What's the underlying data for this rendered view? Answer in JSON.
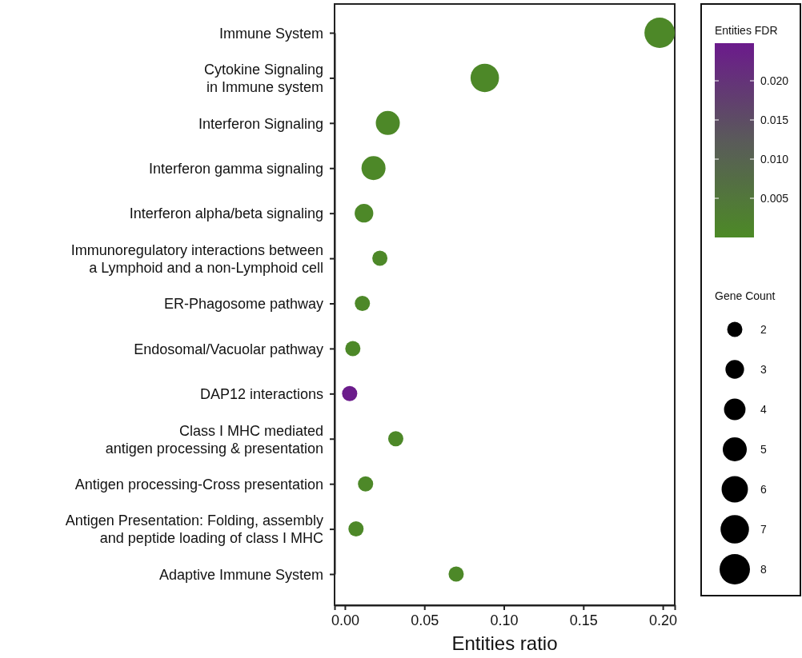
{
  "chart_data": {
    "type": "bubble",
    "orientation": "horizontal",
    "categories": [
      "Immune System",
      "Cytokine Signaling\nin Immune system",
      "Interferon Signaling",
      "Interferon gamma signaling",
      "Interferon alpha/beta signaling",
      "Immunoregulatory interactions between\na Lymphoid and a non-Lymphoid cell",
      "ER-Phagosome pathway",
      "Endosomal/Vacuolar pathway",
      "DAP12 interactions",
      "Class I MHC mediated\nantigen processing & presentation",
      "Antigen processing-Cross presentation",
      "Antigen Presentation: Folding, assembly\nand peptide loading of class I MHC",
      "Adaptive Immune System"
    ],
    "values": [
      0.198,
      0.088,
      0.027,
      0.018,
      0.012,
      0.022,
      0.011,
      0.005,
      0.003,
      0.032,
      0.013,
      0.007,
      0.07
    ],
    "sizes": [
      8,
      7,
      5,
      5,
      3,
      2,
      2,
      2,
      2,
      2,
      2,
      2,
      2
    ],
    "cvalues": [
      0.0005,
      0.0005,
      0.0005,
      0.0005,
      0.0005,
      0.0005,
      0.0005,
      0.0005,
      0.0245,
      0.0005,
      0.0005,
      0.0005,
      0.0005
    ],
    "size_legend": [
      2,
      3,
      4,
      5,
      6,
      7,
      8
    ],
    "xlim": [
      -0.0065,
      0.2075
    ],
    "xticks": [
      {
        "value": 0,
        "label": "0.00"
      },
      {
        "value": 0.05,
        "label": "0.05"
      },
      {
        "value": 0.1,
        "label": "0.10"
      },
      {
        "value": 0.15,
        "label": "0.15"
      },
      {
        "value": 0.2,
        "label": "0.20"
      }
    ],
    "xlabel": "Entities ratio",
    "clabel": "Entities FDR",
    "clim": [
      0,
      0.0248
    ],
    "cticks": [
      0.005,
      {
        "value": 0.01,
        "label": "0.010"
      },
      0.015,
      {
        "value": 0.02,
        "label": "0.020"
      }
    ],
    "legend_title": "Gene Count",
    "grid": false
  }
}
